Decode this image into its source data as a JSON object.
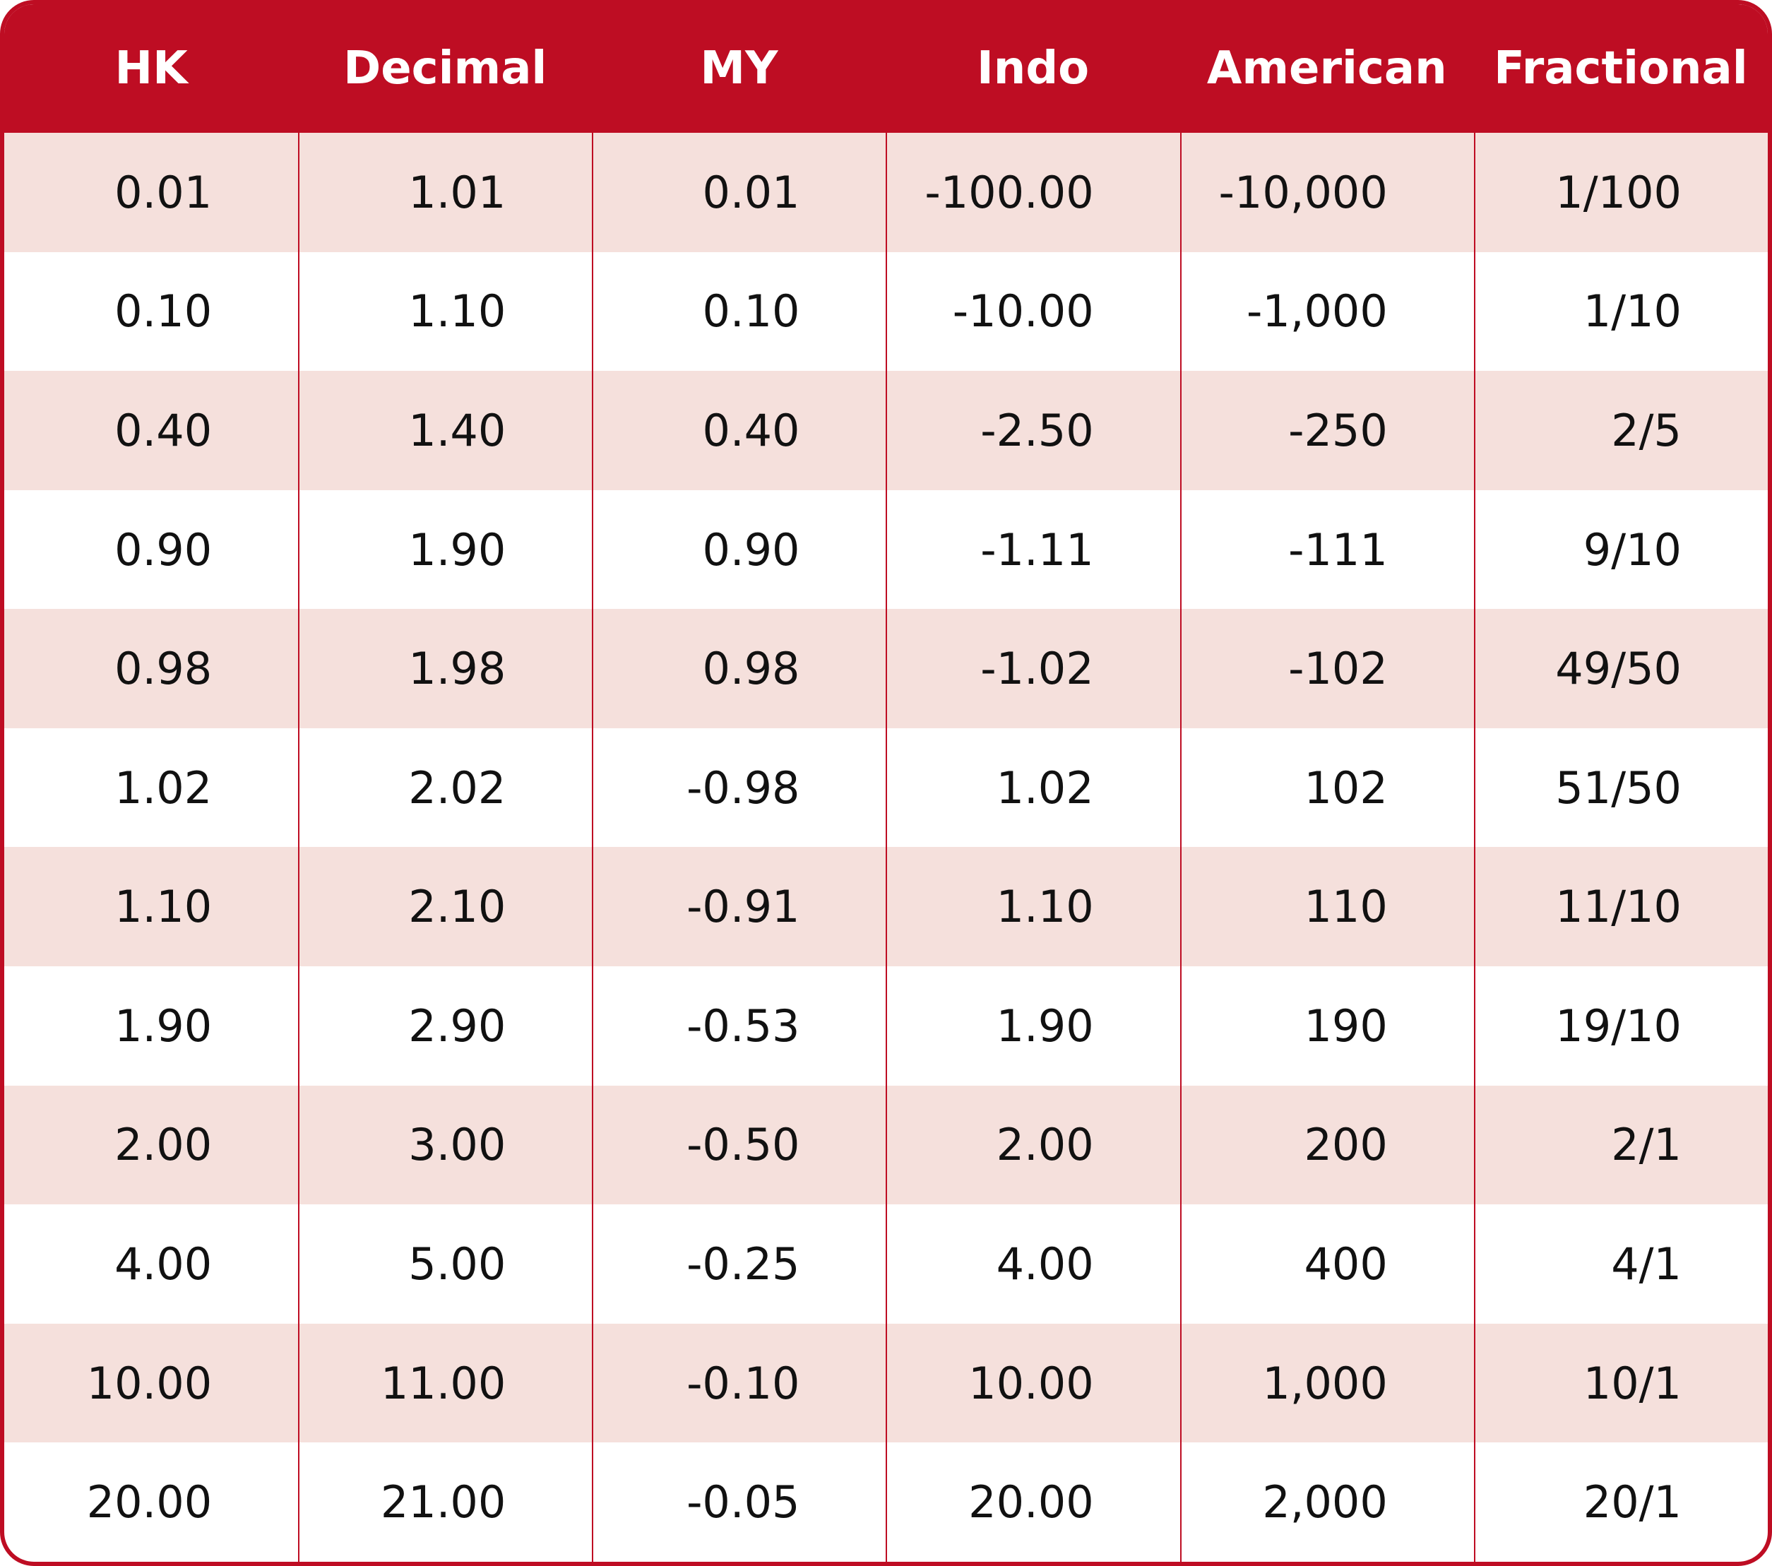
{
  "table": {
    "header": [
      "HK",
      "Decimal",
      "MY",
      "Indo",
      "American",
      "Fractional"
    ],
    "rows": [
      [
        "0.01",
        "1.01",
        "0.01",
        "-100.00",
        "-10,000",
        "1/100"
      ],
      [
        "0.10",
        "1.10",
        "0.10",
        "-10.00",
        "-1,000",
        "1/10"
      ],
      [
        "0.40",
        "1.40",
        "0.40",
        "-2.50",
        "-250",
        "2/5"
      ],
      [
        "0.90",
        "1.90",
        "0.90",
        "-1.11",
        "-111",
        "9/10"
      ],
      [
        "0.98",
        "1.98",
        "0.98",
        "-1.02",
        "-102",
        "49/50"
      ],
      [
        "1.02",
        "2.02",
        "-0.98",
        "1.02",
        "102",
        "51/50"
      ],
      [
        "1.10",
        "2.10",
        "-0.91",
        "1.10",
        "110",
        "11/10"
      ],
      [
        "1.90",
        "2.90",
        "-0.53",
        "1.90",
        "190",
        "19/10"
      ],
      [
        "2.00",
        "3.00",
        "-0.50",
        "2.00",
        "200",
        "2/1"
      ],
      [
        "4.00",
        "5.00",
        "-0.25",
        "4.00",
        "400",
        "4/1"
      ],
      [
        "10.00",
        "11.00",
        "-0.10",
        "10.00",
        "1,000",
        "10/1"
      ],
      [
        "20.00",
        "21.00",
        "-0.05",
        "20.00",
        "2,000",
        "20/1"
      ]
    ]
  }
}
